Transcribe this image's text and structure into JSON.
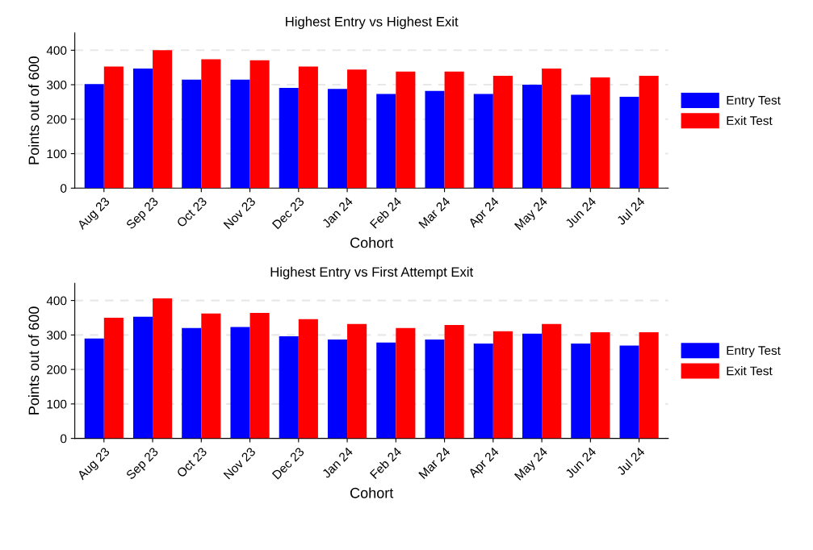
{
  "chart_data": [
    {
      "type": "bar",
      "title": "Highest Entry vs Highest Exit",
      "xlabel": "Cohort",
      "ylabel": "Points out of 600",
      "categories": [
        "Aug 23",
        "Sep 23",
        "Oct 23",
        "Nov 23",
        "Dec 23",
        "Jan 24",
        "Feb 24",
        "Mar 24",
        "Apr 24",
        "May 24",
        "Jun 24",
        "Jul 24"
      ],
      "series": [
        {
          "name": "Entry Test",
          "color": "#0000ff",
          "values": [
            302,
            347,
            315,
            315,
            291,
            288,
            273,
            282,
            273,
            300,
            271,
            265
          ]
        },
        {
          "name": "Exit Test",
          "color": "#ff0000",
          "values": [
            353,
            400,
            374,
            371,
            353,
            344,
            338,
            338,
            326,
            347,
            321,
            326
          ]
        }
      ],
      "ylim": [
        0,
        450
      ],
      "yticks": [
        0,
        100,
        200,
        300,
        400
      ],
      "grid": "y",
      "legend": "right"
    },
    {
      "type": "bar",
      "title": "Highest Entry vs First Attempt Exit",
      "xlabel": "Cohort",
      "ylabel": "Points out of 600",
      "categories": [
        "Aug 23",
        "Sep 23",
        "Oct 23",
        "Nov 23",
        "Dec 23",
        "Jan 24",
        "Feb 24",
        "Mar 24",
        "Apr 24",
        "May 24",
        "Jun 24",
        "Jul 24"
      ],
      "series": [
        {
          "name": "Entry Test",
          "color": "#0000ff",
          "values": [
            290,
            353,
            320,
            323,
            296,
            287,
            278,
            287,
            275,
            304,
            275,
            269
          ]
        },
        {
          "name": "Exit Test",
          "color": "#ff0000",
          "values": [
            350,
            406,
            362,
            364,
            346,
            332,
            320,
            329,
            311,
            332,
            308,
            308
          ]
        }
      ],
      "ylim": [
        0,
        450
      ],
      "yticks": [
        0,
        100,
        200,
        300,
        400
      ],
      "grid": "y",
      "legend": "right"
    }
  ]
}
